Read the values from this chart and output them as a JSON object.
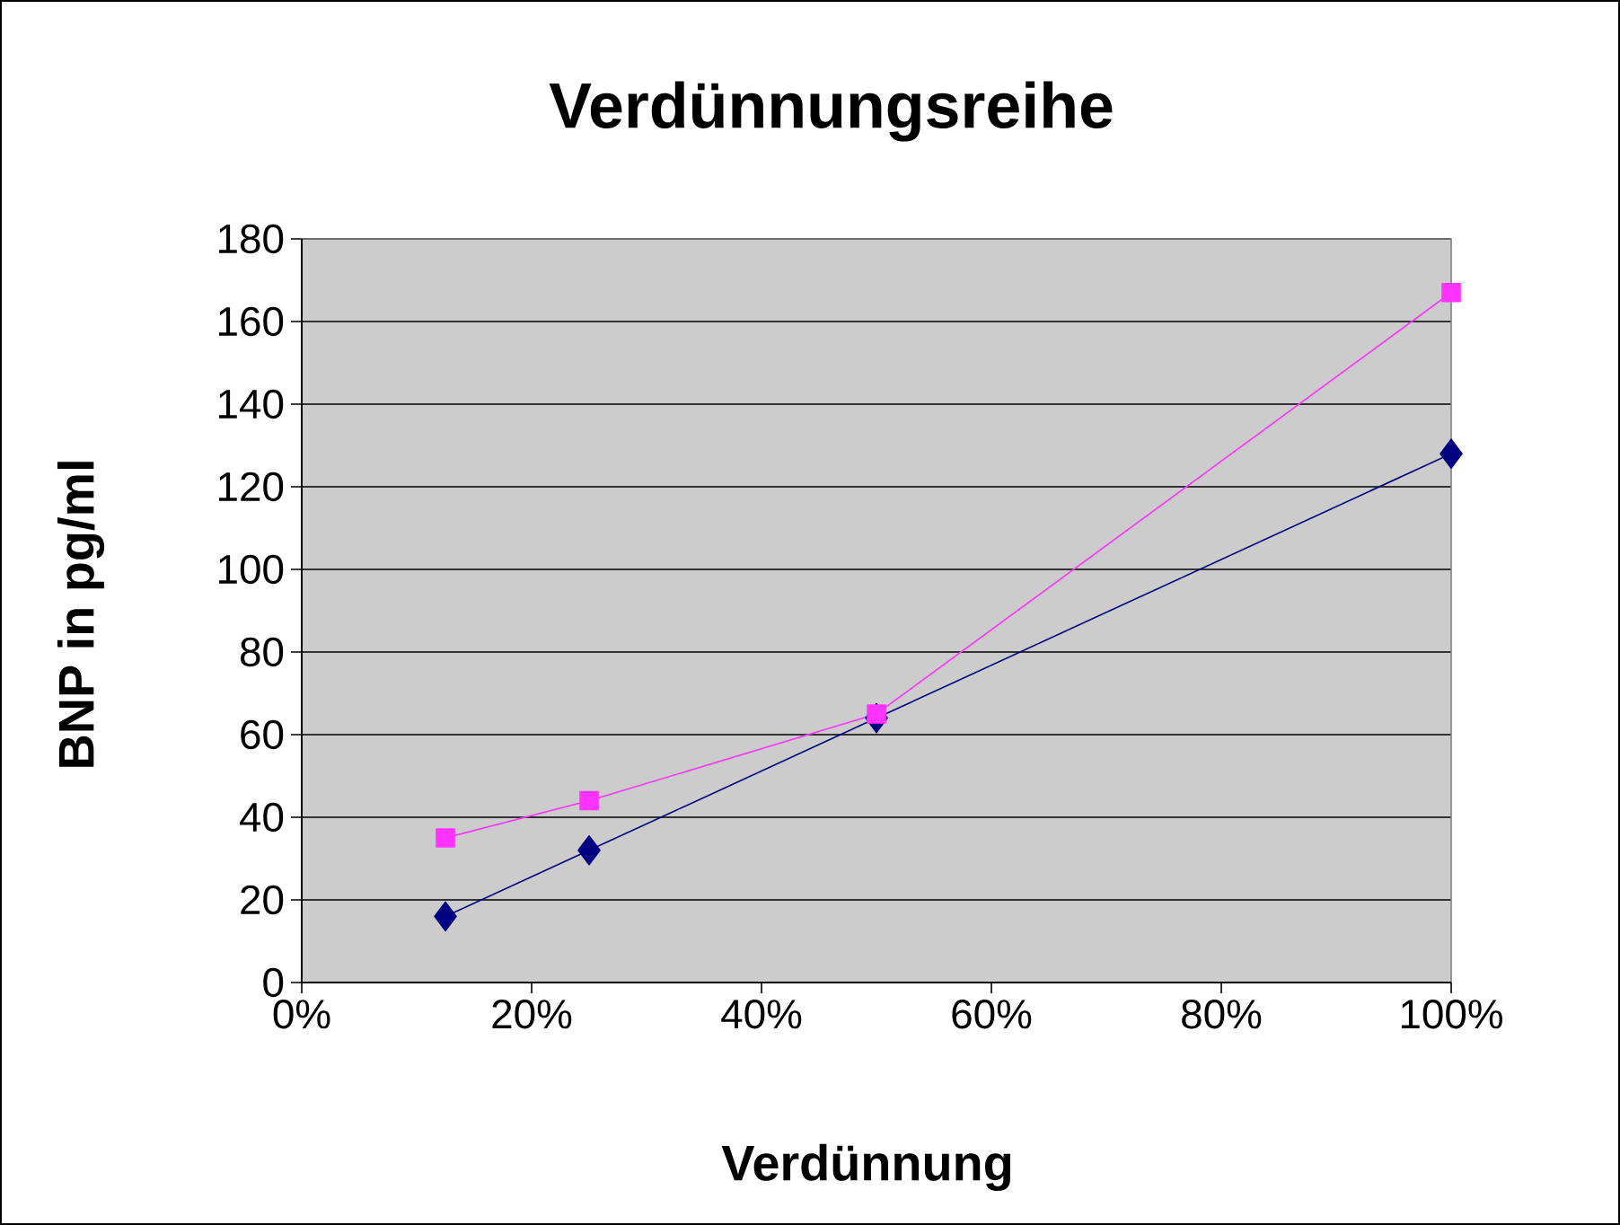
{
  "chart_data": {
    "type": "line",
    "title": "Verdünnungsreihe",
    "xlabel": "Verdünnung",
    "ylabel": "BNP in pg/ml",
    "x": [
      12.5,
      25,
      50,
      100
    ],
    "series": [
      {
        "color": "#000080",
        "marker": "diamond",
        "values": [
          16,
          32,
          64,
          128
        ]
      },
      {
        "color": "#ff33ff",
        "marker": "square",
        "values": [
          35,
          44,
          65,
          167
        ]
      }
    ],
    "xlim": [
      0,
      100
    ],
    "ylim": [
      0,
      180
    ],
    "xticks": [
      {
        "value": 0,
        "label": "0%"
      },
      {
        "value": 20,
        "label": "20%"
      },
      {
        "value": 40,
        "label": "40%"
      },
      {
        "value": 60,
        "label": "60%"
      },
      {
        "value": 80,
        "label": "80%"
      },
      {
        "value": 100,
        "label": "100%"
      }
    ],
    "yticks": [
      0,
      20,
      40,
      60,
      80,
      100,
      120,
      140,
      160,
      180
    ],
    "grid": "y"
  }
}
